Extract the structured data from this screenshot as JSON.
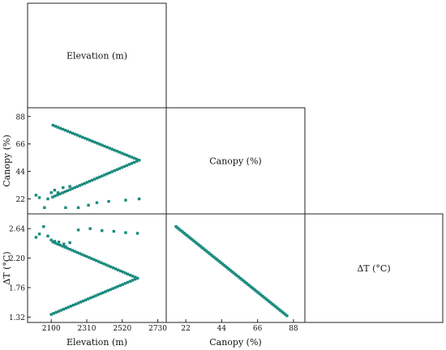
{
  "chart_data": {
    "type": "scatter",
    "layout": "pair-plot lower triangle",
    "marker_color": "#1a8a7e",
    "diagonal_labels": [
      "Elevation (m)",
      "Canopy (%)",
      "ΔT (°C)"
    ],
    "axis_labels": {
      "elevation": "Elevation (m)",
      "canopy": "Canopy (%)",
      "dT": "ΔT (°C)"
    },
    "axes": {
      "elevation": {
        "range": [
          1960,
          2780
        ],
        "ticks": [
          2100,
          2310,
          2520,
          2730
        ]
      },
      "canopy": {
        "range": [
          10,
          95
        ],
        "ticks": [
          22,
          44,
          66,
          88
        ]
      },
      "dT": {
        "range": [
          1.24,
          2.86
        ],
        "ticks": [
          1.32,
          1.76,
          2.2,
          2.64
        ]
      }
    },
    "series": {
      "elev_canopy_upper": {
        "elev_start": 2110,
        "elev_end": 2620,
        "canopy_start": 81,
        "canopy_end": 53,
        "count": 36
      },
      "elev_canopy_lower": {
        "elev_start": 2108,
        "elev_end": 2620,
        "canopy_start": 23.5,
        "canopy_end": 53,
        "count": 36
      },
      "elev_canopy_scatter": {
        "elevation": [
          2010,
          2030,
          2060,
          2080,
          2100,
          2120,
          2140,
          2170,
          2185,
          2210,
          2260,
          2320,
          2370,
          2440,
          2540,
          2620
        ],
        "canopy": [
          25,
          23,
          15,
          22,
          27,
          29,
          27,
          31,
          15,
          32,
          15,
          17,
          19,
          20,
          21,
          22
        ]
      },
      "elev_dT_upper": {
        "elev_start": 2110,
        "elev_end": 2610,
        "dT_start": 2.44,
        "dT_end": 1.9,
        "count": 36
      },
      "elev_dT_lower": {
        "elev_start": 2100,
        "elev_end": 2610,
        "dT_start": 1.36,
        "dT_end": 1.9,
        "count": 36
      },
      "elev_dT_scatter": {
        "elevation": [
          2010,
          2030,
          2055,
          2080,
          2100,
          2120,
          2145,
          2175,
          2185,
          2210,
          2260,
          2330,
          2400,
          2470,
          2540,
          2610
        ],
        "dT": [
          2.51,
          2.56,
          2.67,
          2.53,
          2.47,
          2.45,
          2.44,
          2.41,
          2.37,
          2.43,
          2.62,
          2.64,
          2.61,
          2.6,
          2.58,
          2.57
        ]
      },
      "canopy_dT_line": {
        "canopy_start": 16,
        "canopy_end": 84,
        "dT_start": 2.67,
        "dT_end": 1.34,
        "count": 70
      }
    }
  }
}
